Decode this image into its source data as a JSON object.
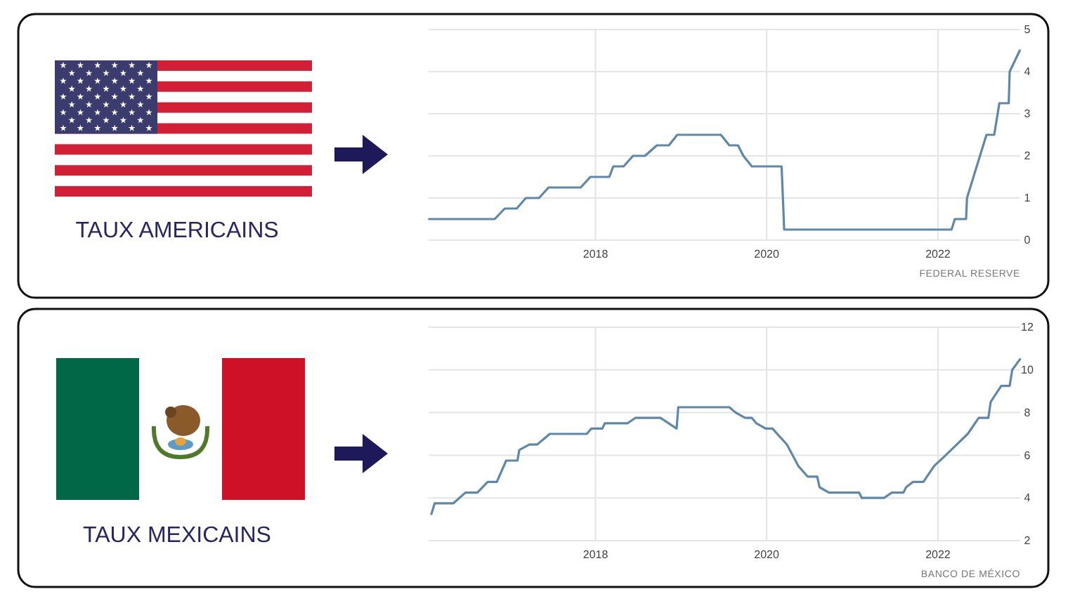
{
  "chart_data": [
    {
      "type": "other",
      "title": "TAUX AMERICAINS"
    },
    {
      "type": "line",
      "annotations": [
        "FEDERAL RESERVE"
      ],
      "color": "#5f88a8",
      "grid": true,
      "xlim": [
        "2016-01-20",
        "2022-12-18"
      ],
      "xticks": [
        "2018",
        "2020",
        "2022"
      ],
      "ylim": [
        0,
        5
      ],
      "yticks": [
        0,
        1,
        2,
        3,
        4,
        5
      ],
      "x": [
        "2016-01-22",
        "2016-10-28",
        "2016-12-10",
        "2017-01-30",
        "2017-03-10",
        "2017-05-05",
        "2017-06-15",
        "2017-10-30",
        "2017-12-10",
        "2018-03-01",
        "2018-03-18",
        "2018-05-01",
        "2018-06-10",
        "2018-07-31",
        "2018-09-20",
        "2018-11-10",
        "2018-12-16",
        "2019-06-20",
        "2019-07-26",
        "2019-09-01",
        "2019-09-24",
        "2019-10-30",
        "2020-03-05",
        "2020-03-16",
        "2022-02-28",
        "2022-03-14",
        "2022-05-01",
        "2022-05-05",
        "2022-07-27",
        "2022-08-29",
        "2022-09-20",
        "2022-10-30",
        "2022-11-03",
        "2022-12-16"
      ],
      "values": [
        0.5,
        0.5,
        0.75,
        0.75,
        1,
        1,
        1.25,
        1.25,
        1.5,
        1.5,
        1.75,
        1.75,
        2,
        2,
        2.25,
        2.25,
        2.5,
        2.5,
        2.25,
        2.25,
        2,
        1.75,
        1.75,
        0.25,
        0.25,
        0.5,
        0.5,
        1,
        2.5,
        2.5,
        3.25,
        3.25,
        4,
        4.5
      ]
    },
    {
      "type": "other",
      "title": "TAUX MEXICAINS"
    },
    {
      "type": "line",
      "annotations": [
        "BANCO DE MÉXICO"
      ],
      "color": "#5f88a8",
      "grid": true,
      "xlim": [
        "2016-01-20",
        "2022-12-18"
      ],
      "xticks": [
        "2018",
        "2020",
        "2022"
      ],
      "ylim": [
        2,
        12
      ],
      "yticks": [
        2,
        4,
        6,
        8,
        10,
        12
      ],
      "x": [
        "2016-02-01",
        "2016-02-15",
        "2016-05-05",
        "2016-06-25",
        "2016-08-15",
        "2016-09-28",
        "2016-11-06",
        "2016-12-16",
        "2017-02-02",
        "2017-02-10",
        "2017-03-25",
        "2017-04-27",
        "2017-06-20",
        "2017-11-25",
        "2017-12-14",
        "2018-01-30",
        "2018-02-10",
        "2018-05-18",
        "2018-06-20",
        "2018-10-05",
        "2018-12-13",
        "2018-12-20",
        "2019-07-26",
        "2019-08-22",
        "2019-10-01",
        "2019-10-30",
        "2019-11-18",
        "2019-12-28",
        "2020-01-26",
        "2020-03-28",
        "2020-05-15",
        "2020-06-24",
        "2020-08-04",
        "2020-08-14",
        "2020-09-23",
        "2021-01-30",
        "2021-02-10",
        "2021-05-16",
        "2021-06-18",
        "2021-08-07",
        "2021-08-18",
        "2021-09-16",
        "2021-10-31",
        "2021-12-16",
        "2022-02-03",
        "2022-05-08",
        "2022-06-24",
        "2022-08-04",
        "2022-08-14",
        "2022-09-28",
        "2022-11-03",
        "2022-11-14",
        "2022-12-17"
      ],
      "values": [
        3.25,
        3.75,
        3.75,
        4.25,
        4.25,
        4.75,
        4.75,
        5.75,
        5.75,
        6.25,
        6.5,
        6.5,
        7,
        7,
        7.25,
        7.25,
        7.5,
        7.5,
        7.75,
        7.75,
        7.25,
        8.25,
        8.25,
        8,
        7.75,
        7.75,
        7.5,
        7.25,
        7.25,
        6.5,
        5.5,
        5,
        5,
        4.5,
        4.25,
        4.25,
        4,
        4,
        4.25,
        4.25,
        4.5,
        4.75,
        4.75,
        5.5,
        6,
        7,
        7.75,
        7.75,
        8.5,
        9.25,
        9.25,
        10,
        10.5
      ]
    }
  ]
}
